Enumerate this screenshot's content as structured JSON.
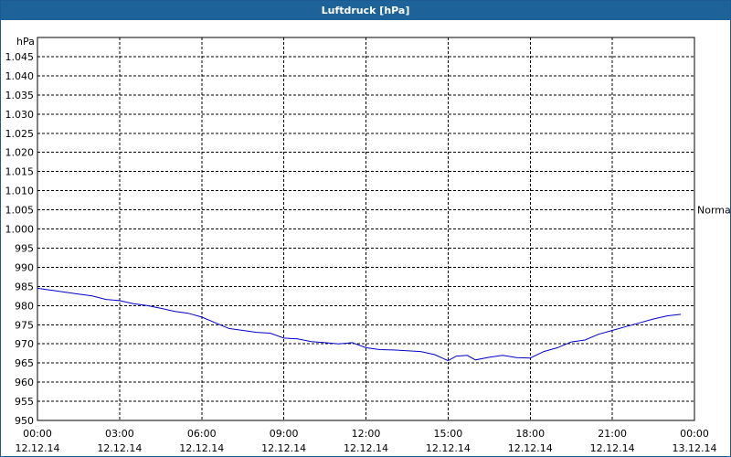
{
  "window": {
    "title": "Luftdruck [hPa]"
  },
  "chart_data": {
    "type": "line",
    "title": "Luftdruck [hPa]",
    "ylabel": "hPa",
    "ylim": [
      950,
      1050
    ],
    "xlim_hours": [
      0,
      24
    ],
    "yticks": [
      {
        "value": 950,
        "label": "950"
      },
      {
        "value": 955,
        "label": "955"
      },
      {
        "value": 960,
        "label": "960"
      },
      {
        "value": 965,
        "label": "965"
      },
      {
        "value": 970,
        "label": "970"
      },
      {
        "value": 975,
        "label": "975"
      },
      {
        "value": 980,
        "label": "980"
      },
      {
        "value": 985,
        "label": "985"
      },
      {
        "value": 990,
        "label": "990"
      },
      {
        "value": 995,
        "label": "995"
      },
      {
        "value": 1000,
        "label": "1.000"
      },
      {
        "value": 1005,
        "label": "1.005"
      },
      {
        "value": 1010,
        "label": "1.010"
      },
      {
        "value": 1015,
        "label": "1.015"
      },
      {
        "value": 1020,
        "label": "1.020"
      },
      {
        "value": 1025,
        "label": "1.025"
      },
      {
        "value": 1030,
        "label": "1.030"
      },
      {
        "value": 1035,
        "label": "1.035"
      },
      {
        "value": 1040,
        "label": "1.040"
      },
      {
        "value": 1045,
        "label": "1.045"
      }
    ],
    "xticks": [
      {
        "hour": 0,
        "time": "00:00",
        "date": "12.12.14"
      },
      {
        "hour": 3,
        "time": "03:00",
        "date": "12.12.14"
      },
      {
        "hour": 6,
        "time": "06:00",
        "date": "12.12.14"
      },
      {
        "hour": 9,
        "time": "09:00",
        "date": "12.12.14"
      },
      {
        "hour": 12,
        "time": "12:00",
        "date": "12.12.14"
      },
      {
        "hour": 15,
        "time": "15:00",
        "date": "12.12.14"
      },
      {
        "hour": 18,
        "time": "18:00",
        "date": "12.12.14"
      },
      {
        "hour": 21,
        "time": "21:00",
        "date": "12.12.14"
      },
      {
        "hour": 24,
        "time": "00:00",
        "date": "13.12.14"
      }
    ],
    "reference_line": {
      "value": 1005,
      "label": "Normal"
    },
    "grid": true,
    "series": [
      {
        "color": "#0000cc",
        "x": [
          0,
          0.5,
          1,
          1.5,
          2,
          2.5,
          3,
          3.5,
          4,
          4.5,
          5,
          5.5,
          6,
          6.5,
          7,
          7.5,
          8,
          8.5,
          9,
          9.5,
          10,
          10.5,
          11,
          11.5,
          12,
          12.5,
          13,
          13.5,
          14,
          14.5,
          15,
          15.3,
          15.7,
          16,
          16.5,
          17,
          17.5,
          18,
          18.5,
          19,
          19.5,
          20,
          20.5,
          21,
          21.5,
          22,
          22.5,
          23,
          23.5
        ],
        "y": [
          984.5,
          984.0,
          983.5,
          983.0,
          982.5,
          981.6,
          981.3,
          980.5,
          980.0,
          979.3,
          978.5,
          978.0,
          977.0,
          975.5,
          974.0,
          973.5,
          973.0,
          972.8,
          971.5,
          971.3,
          970.6,
          970.3,
          970.0,
          970.3,
          969.0,
          968.5,
          968.4,
          968.2,
          968.0,
          967.2,
          965.6,
          966.8,
          967.0,
          965.8,
          966.5,
          967.0,
          966.4,
          966.3,
          968.0,
          969.0,
          970.5,
          971.0,
          972.5,
          973.5,
          974.5,
          975.5,
          976.5,
          977.3,
          977.7
        ]
      }
    ]
  }
}
